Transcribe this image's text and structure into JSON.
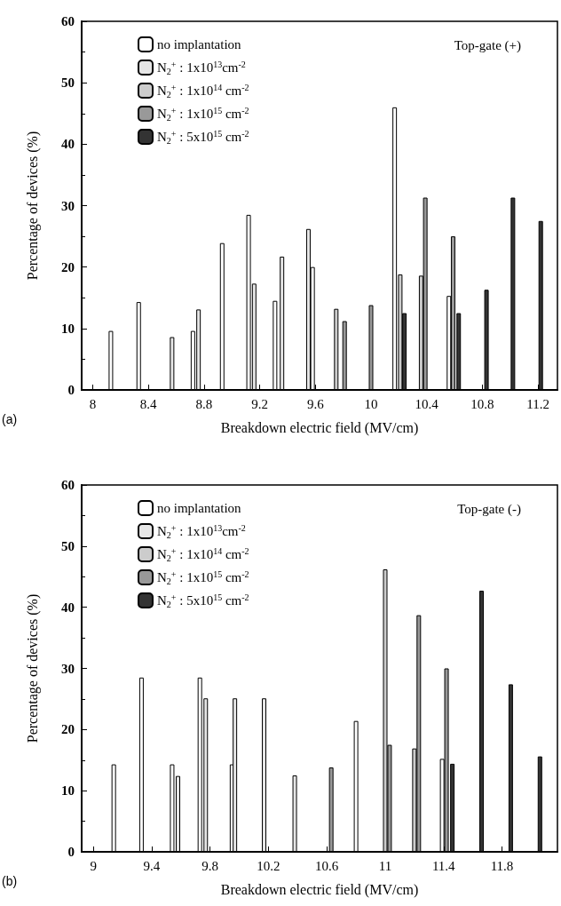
{
  "chart_data": [
    {
      "type": "bar",
      "title": "Top-gate (+)",
      "xlabel": "Breakdown electric field (MV/cm)",
      "ylabel": "Percentage of devices (%)",
      "annotations": [
        "(a)"
      ],
      "xlim": [
        7.92,
        11.34
      ],
      "xticks": [
        8,
        8.4,
        8.8,
        9.2,
        9.6,
        10,
        10.4,
        10.8,
        11.2
      ],
      "ylim": [
        0,
        60
      ],
      "yticks": [
        0,
        10,
        20,
        30,
        40,
        50,
        60
      ],
      "legend": "top left",
      "grid": false,
      "series": [
        {
          "name": "no implantation",
          "color": "#ffffff",
          "x": [
            8.13,
            8.33,
            8.72,
            8.93,
            9.12,
            9.31,
            9.58,
            10.17,
            10.56
          ],
          "values": [
            9.6,
            14.3,
            9.6,
            23.9,
            28.5,
            14.5,
            20,
            46,
            15.3
          ]
        },
        {
          "name": "N$_{2}$$^{+}$ : 1x10$^{13}$cm$^{-2}$",
          "color": "#e6e6e6",
          "x": [
            8.57,
            8.76,
            9.16,
            9.36,
            9.55
          ],
          "values": [
            8.6,
            13.1,
            17.3,
            21.7,
            26.2
          ]
        },
        {
          "name": "N$_{2}$$^{+}$ : 1x10$^{14}$ cm$^{-2}$",
          "color": "#cccccc",
          "x": [
            9.75,
            10.21,
            10.36
          ],
          "values": [
            13.2,
            18.8,
            18.6
          ]
        },
        {
          "name": "N$_{2}$$^{+}$ : 1x10$^{15}$ cm$^{-2}$",
          "color": "#999999",
          "x": [
            9.81,
            10.0,
            10.39,
            10.59
          ],
          "values": [
            11.2,
            13.8,
            31.3,
            25
          ]
        },
        {
          "name": "N$_{2}$$^{+}$ : 5x10$^{15}$ cm$^{-2}$",
          "color": "#333333",
          "x": [
            10.24,
            10.63,
            10.83,
            11.02,
            11.22
          ],
          "values": [
            12.5,
            12.5,
            16.3,
            31.3,
            27.5
          ]
        }
      ]
    },
    {
      "type": "bar",
      "title": "Top-gate (-)",
      "xlabel": "Breakdown electric field (MV/cm)",
      "ylabel": "Percentage of devices (%)",
      "annotations": [
        "(b)"
      ],
      "xlim": [
        8.92,
        12.18
      ],
      "xticks": [
        9,
        9.4,
        9.8,
        10.2,
        10.6,
        11,
        11.4,
        11.8
      ],
      "ylim": [
        0,
        60
      ],
      "yticks": [
        0,
        10,
        20,
        30,
        40,
        50,
        60
      ],
      "legend": "top left",
      "grid": false,
      "series": [
        {
          "name": "no implantation",
          "color": "#ffffff",
          "x": [
            9.14,
            9.33,
            9.54,
            9.73,
            9.95,
            10.8,
            11.39
          ],
          "values": [
            14.3,
            28.5,
            14.3,
            28.5,
            14.3,
            21.4,
            15.2
          ]
        },
        {
          "name": "N$_{2}$$^{+}$ : 1x10$^{13}$cm$^{-2}$",
          "color": "#e6e6e6",
          "x": [
            9.58,
            9.77,
            9.97,
            10.17,
            10.38
          ],
          "values": [
            12.4,
            25.1,
            25.1,
            25.1,
            12.5
          ]
        },
        {
          "name": "N$_{2}$$^{+}$ : 1x10$^{14}$ cm$^{-2}$",
          "color": "#cccccc",
          "x": [
            11.0,
            11.2
          ],
          "values": [
            46.2,
            16.9
          ]
        },
        {
          "name": "N$_{2}$$^{+}$ : 1x10$^{15}$ cm$^{-2}$",
          "color": "#999999",
          "x": [
            10.63,
            11.03,
            11.23,
            11.42
          ],
          "values": [
            13.8,
            17.5,
            38.7,
            30
          ]
        },
        {
          "name": "N$_{2}$$^{+}$ : 5x10$^{15}$ cm$^{-2}$",
          "color": "#333333",
          "x": [
            11.46,
            11.66,
            11.86,
            12.06
          ],
          "values": [
            14.4,
            42.7,
            27.4,
            15.6
          ]
        }
      ]
    }
  ]
}
